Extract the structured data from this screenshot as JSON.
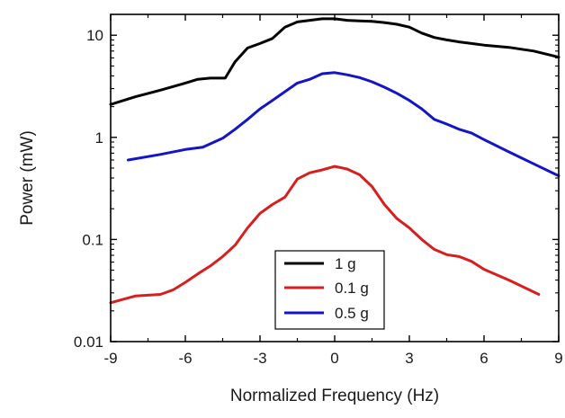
{
  "chart_data": {
    "type": "line",
    "xlabel": "Normalized Frequency (Hz)",
    "ylabel": "Power (mW)",
    "xlim": [
      -9,
      9
    ],
    "ylim": [
      0.01,
      16
    ],
    "yscale": "log",
    "xticks": [
      -9,
      -6,
      -3,
      0,
      3,
      6,
      9
    ],
    "xtick_labels": [
      "-9",
      "-6",
      "-3",
      "0",
      "3",
      "6",
      "9"
    ],
    "yticks": [
      0.01,
      0.1,
      1,
      10
    ],
    "ytick_labels": [
      "0.01",
      "0.1",
      "1",
      "10"
    ],
    "grid": false,
    "legend_position": "bottom-center",
    "series": [
      {
        "name": "1 g",
        "color": "#000000",
        "x": [
          -9,
          -8,
          -7,
          -6,
          -5.5,
          -5,
          -4.4,
          -4,
          -3.5,
          -3,
          -2.5,
          -2,
          -1.5,
          -1,
          -0.5,
          0,
          0.5,
          1,
          1.5,
          2,
          2.5,
          3,
          3.5,
          4,
          4.5,
          5,
          5.5,
          6,
          7,
          8,
          9
        ],
        "y": [
          2.1,
          2.5,
          2.9,
          3.4,
          3.7,
          3.8,
          3.8,
          5.5,
          7.5,
          8.3,
          9.3,
          12.0,
          13.5,
          14.0,
          14.5,
          14.5,
          14.0,
          13.8,
          13.7,
          13.3,
          12.8,
          12.0,
          10.5,
          9.5,
          9.0,
          8.6,
          8.3,
          8.0,
          7.6,
          7.0,
          6.1
        ]
      },
      {
        "name": "0.1 g",
        "color": "#d62020",
        "x": [
          -9,
          -8,
          -7,
          -6.5,
          -6,
          -5.5,
          -5,
          -4.5,
          -4,
          -3.5,
          -3,
          -2.5,
          -2,
          -1.5,
          -1,
          -0.5,
          0,
          0.5,
          1,
          1.5,
          2,
          2.5,
          3,
          3.5,
          4,
          4.5,
          5,
          5.5,
          6,
          7,
          8.2
        ],
        "y": [
          0.024,
          0.028,
          0.029,
          0.032,
          0.038,
          0.046,
          0.055,
          0.068,
          0.088,
          0.13,
          0.18,
          0.22,
          0.26,
          0.39,
          0.45,
          0.48,
          0.52,
          0.49,
          0.43,
          0.33,
          0.22,
          0.16,
          0.13,
          0.1,
          0.08,
          0.071,
          0.068,
          0.061,
          0.051,
          0.04,
          0.029
        ]
      },
      {
        "name": "0.5 g",
        "color": "#1414c8",
        "x": [
          -8.3,
          -7,
          -6,
          -5.3,
          -4.5,
          -4,
          -3.5,
          -3,
          -2.5,
          -2,
          -1.5,
          -1,
          -0.5,
          0,
          0.5,
          1,
          1.5,
          2,
          2.5,
          3,
          3.5,
          4,
          4.5,
          5,
          5.5,
          6,
          7,
          8,
          9
        ],
        "y": [
          0.6,
          0.68,
          0.76,
          0.8,
          0.98,
          1.2,
          1.5,
          1.9,
          2.3,
          2.8,
          3.4,
          3.7,
          4.2,
          4.3,
          4.1,
          3.85,
          3.5,
          3.1,
          2.7,
          2.3,
          1.9,
          1.5,
          1.35,
          1.2,
          1.1,
          0.95,
          0.72,
          0.55,
          0.42
        ]
      }
    ]
  }
}
